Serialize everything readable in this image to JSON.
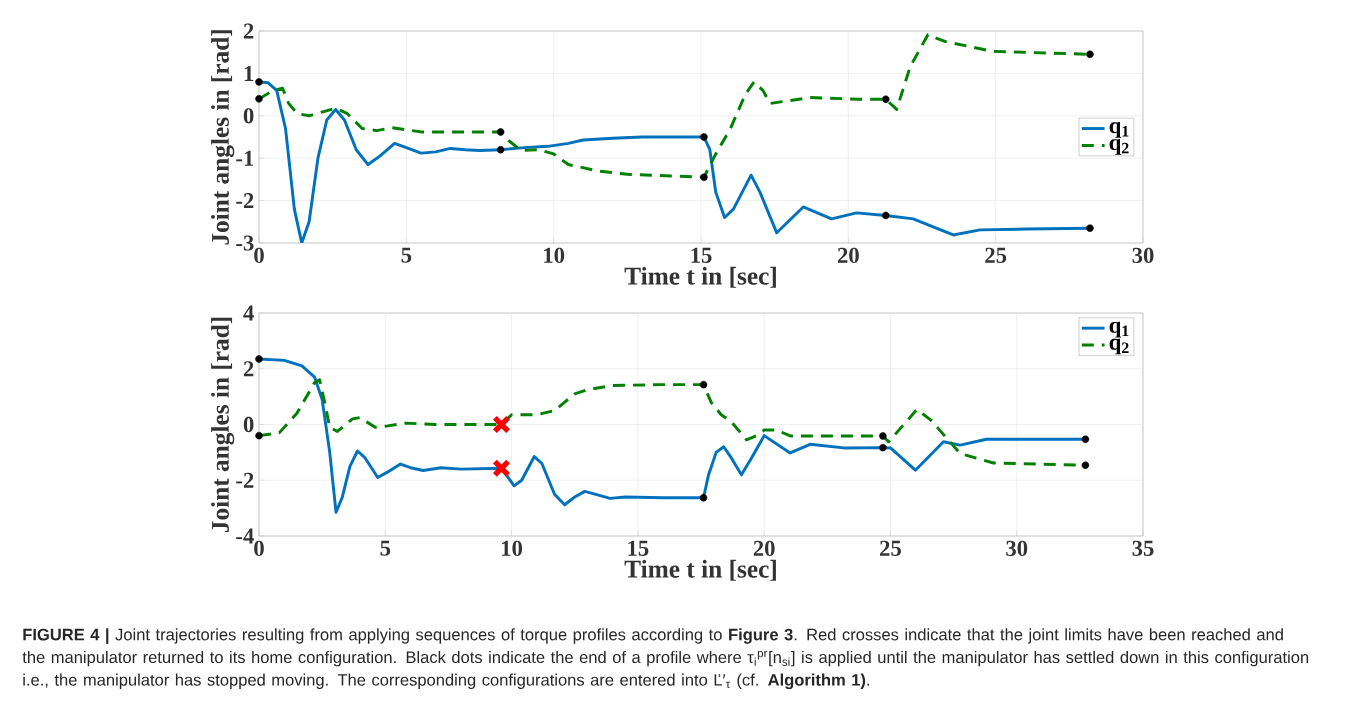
{
  "chart_data": [
    {
      "type": "line",
      "xlabel": "Time t in [sec]",
      "ylabel": "Joint angles in [rad]",
      "xlim": [
        0,
        30
      ],
      "ylim": [
        -3,
        2
      ],
      "xticks": [
        0,
        5,
        10,
        15,
        20,
        25,
        30
      ],
      "yticks": [
        -3,
        -2,
        -1,
        0,
        1,
        2
      ],
      "grid": true,
      "legend": "right",
      "series": [
        {
          "name": "q$_{1}$",
          "type": "line",
          "color": "#0072bd",
          "line_style": "solid",
          "marker": "none",
          "x": [
            0,
            0.3,
            0.6,
            0.9,
            1.2,
            1.45,
            1.7,
            2.0,
            2.3,
            2.6,
            2.9,
            3.3,
            3.7,
            4.1,
            4.6,
            5.0,
            5.5,
            6.0,
            6.5,
            7.0,
            7.5,
            8.2,
            9.0,
            9.8,
            10.5,
            11,
            12,
            13,
            14,
            15.1,
            15.3,
            15.5,
            15.8,
            16.1,
            16.7,
            17.0,
            17.57,
            18.47,
            19.43,
            20.28,
            21.27,
            22.2,
            23.56,
            24.47,
            26.05,
            28.2
          ],
          "values": [
            0.8,
            0.78,
            0.6,
            -0.3,
            -2.2,
            -3.0,
            -2.5,
            -1.0,
            -0.1,
            0.15,
            -0.1,
            -0.8,
            -1.15,
            -0.95,
            -0.65,
            -0.75,
            -0.88,
            -0.85,
            -0.77,
            -0.8,
            -0.82,
            -0.8,
            -0.75,
            -0.72,
            -0.65,
            -0.57,
            -0.53,
            -0.5,
            -0.5,
            -0.5,
            -0.8,
            -1.8,
            -2.4,
            -2.2,
            -1.4,
            -1.8,
            -2.76,
            -2.15,
            -2.43,
            -2.29,
            -2.35,
            -2.43,
            -2.81,
            -2.69,
            -2.67,
            -2.65
          ]
        },
        {
          "name": "q$_{2}$",
          "type": "line",
          "color": "#008000",
          "line_style": "dashed",
          "marker": "none",
          "x": [
            0,
            0.5,
            0.8,
            1.0,
            1.3,
            1.7,
            2.2,
            2.6,
            3.0,
            3.5,
            4.0,
            4.5,
            5.5,
            7,
            8.2,
            8.5,
            8.9,
            9.5,
            10,
            10.5,
            11.5,
            12.5,
            14,
            15.1,
            15.5,
            16,
            16.5,
            16.8,
            17.1,
            17.34,
            18.7,
            20.4,
            21.27,
            21.64,
            22.1,
            22.7,
            23.3,
            24.9,
            28.2
          ],
          "values": [
            0.4,
            0.6,
            0.65,
            0.3,
            0.05,
            0.0,
            0.1,
            0.18,
            0.05,
            -0.3,
            -0.35,
            -0.28,
            -0.38,
            -0.38,
            -0.38,
            -0.6,
            -0.82,
            -0.8,
            -0.9,
            -1.15,
            -1.3,
            -1.38,
            -1.42,
            -1.45,
            -0.9,
            -0.3,
            0.5,
            0.8,
            0.6,
            0.29,
            0.43,
            0.39,
            0.39,
            0.15,
            1.16,
            1.91,
            1.75,
            1.52,
            1.45
          ]
        },
        {
          "type": "scatter",
          "color": "#000000",
          "marker": "circle",
          "x": [
            0,
            0,
            8.2,
            8.2,
            15.1,
            15.1,
            21.27,
            21.27,
            28.2,
            28.2
          ],
          "values": [
            0.8,
            0.4,
            -0.38,
            -0.8,
            -0.5,
            -1.45,
            0.39,
            -2.35,
            1.45,
            -2.65
          ]
        }
      ]
    },
    {
      "type": "line",
      "xlabel": "Time t in [sec]",
      "ylabel": "Joint angles in [rad]",
      "xlim": [
        0,
        35
      ],
      "ylim": [
        -4,
        4
      ],
      "xticks": [
        0,
        5,
        10,
        15,
        20,
        25,
        30,
        35
      ],
      "yticks": [
        -4,
        -2,
        0,
        2,
        4
      ],
      "grid": true,
      "legend": "top right",
      "annotations": [
        "**FIGURE 4 |** Joint trajectories resulting from applying sequences of torque profiles according to **Figure 3**. Red crosses indicate that the joint limits have been reached and the manipulator returned to its home configuration. Black dots indicate the end of a profile where τ$_{i}$$^{pr}$[n$_{si}$] is applied until the manipulator has settled down in this configuration i.e., the manipulator has stopped moving. The corresponding configurations are entered into Ľ′$_{τ}$ (cf. **Algorithm 1)**."
      ],
      "series": [
        {
          "name": "q$_{1}$",
          "type": "line",
          "color": "#0072bd",
          "line_style": "solid",
          "marker": "none",
          "x": [
            0,
            1,
            1.7,
            2.2,
            2.5,
            2.8,
            3.05,
            3.3,
            3.6,
            3.9,
            4.2,
            4.7,
            5.1,
            5.6,
            6.0,
            6.5,
            7.2,
            8,
            9.6,
            10.1,
            10.4,
            10.9,
            11.2,
            11.7,
            12.1,
            12.5,
            12.9,
            13.3,
            13.9,
            14.5,
            16,
            17.6,
            17.8,
            18.1,
            18.4,
            18.7,
            19.1,
            19.5,
            20,
            21.03,
            21.82,
            23.15,
            24.7,
            25,
            25.99,
            27.1,
            27.76,
            28.8,
            32.72
          ],
          "values": [
            2.35,
            2.3,
            2.1,
            1.7,
            0.9,
            -1.0,
            -3.15,
            -2.6,
            -1.5,
            -0.95,
            -1.2,
            -1.9,
            -1.7,
            -1.42,
            -1.55,
            -1.65,
            -1.55,
            -1.6,
            -1.57,
            -2.2,
            -2.0,
            -1.15,
            -1.4,
            -2.5,
            -2.88,
            -2.6,
            -2.4,
            -2.5,
            -2.65,
            -2.6,
            -2.63,
            -2.63,
            -1.8,
            -1.0,
            -0.8,
            -1.2,
            -1.8,
            -1.2,
            -0.4,
            -1.02,
            -0.71,
            -0.84,
            -0.83,
            -0.84,
            -1.64,
            -0.62,
            -0.74,
            -0.53,
            -0.53
          ]
        },
        {
          "name": "q$_{2}$",
          "type": "line",
          "color": "#008000",
          "line_style": "dashed",
          "marker": "none",
          "x": [
            0,
            0.8,
            1.5,
            2.2,
            2.4,
            2.6,
            2.8,
            3.1,
            3.7,
            4.0,
            4.6,
            5.1,
            5.8,
            7,
            9.6,
            10.0,
            11,
            11.7,
            12.5,
            13,
            14,
            16,
            17.6,
            17.9,
            18.3,
            18.7,
            19.3,
            19.7,
            20.0,
            20.5,
            21.03,
            23.15,
            24.7,
            24.93,
            26.05,
            26.6,
            27.76,
            29.08,
            32.72
          ],
          "values": [
            -0.4,
            -0.3,
            0.4,
            1.5,
            1.6,
            0.8,
            -0.1,
            -0.25,
            0.2,
            0.25,
            -0.1,
            -0.05,
            0.05,
            0.0,
            0.0,
            0.35,
            0.35,
            0.5,
            1.1,
            1.25,
            1.4,
            1.43,
            1.43,
            0.8,
            0.35,
            0.1,
            -0.55,
            -0.4,
            -0.2,
            -0.2,
            -0.41,
            -0.41,
            -0.41,
            -0.62,
            0.54,
            0.16,
            -1.04,
            -1.38,
            -1.46
          ]
        },
        {
          "type": "scatter",
          "color": "#000000",
          "marker": "circle",
          "x": [
            0,
            0,
            17.6,
            17.6,
            24.7,
            24.7,
            32.72,
            32.72
          ],
          "values": [
            2.35,
            -0.4,
            1.43,
            -2.63,
            -0.41,
            -0.83,
            -0.53,
            -1.46
          ]
        },
        {
          "type": "scatter",
          "color": "#ff0000",
          "marker": "cross",
          "x": [
            9.6,
            9.6
          ],
          "values": [
            0.0,
            -1.57
          ]
        }
      ]
    }
  ]
}
